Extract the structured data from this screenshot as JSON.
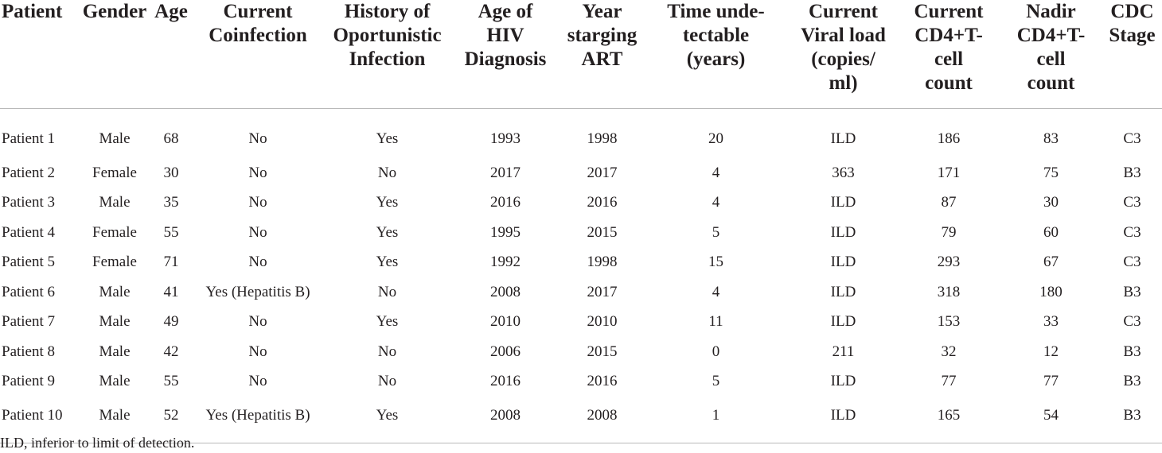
{
  "table": {
    "headers": [
      [
        "Patient"
      ],
      [
        "Gender"
      ],
      [
        "Age"
      ],
      [
        "Current",
        "Coinfection"
      ],
      [
        "History of",
        "Oportunistic",
        "Infection"
      ],
      [
        "Age of",
        "HIV",
        "Diagnosis"
      ],
      [
        "Year",
        "starging",
        "ART"
      ],
      [
        "Time unde-",
        "tectable",
        "(years)"
      ],
      [
        "Current",
        "Viral load",
        "(copies/",
        "ml)"
      ],
      [
        "Current",
        "CD4+T-",
        "cell",
        "count"
      ],
      [
        "Nadir",
        "CD4+T-",
        "cell",
        "count"
      ],
      [
        "CDC",
        "Stage"
      ]
    ],
    "rows": [
      [
        "Patient 1",
        "Male",
        "68",
        "No",
        "Yes",
        "1993",
        "1998",
        "20",
        "ILD",
        "186",
        "83",
        "C3"
      ],
      [
        "Patient 2",
        "Female",
        "30",
        "No",
        "No",
        "2017",
        "2017",
        "4",
        "363",
        "171",
        "75",
        "B3"
      ],
      [
        "Patient 3",
        "Male",
        "35",
        "No",
        "Yes",
        "2016",
        "2016",
        "4",
        "ILD",
        "87",
        "30",
        "C3"
      ],
      [
        "Patient 4",
        "Female",
        "55",
        "No",
        "Yes",
        "1995",
        "2015",
        "5",
        "ILD",
        "79",
        "60",
        "C3"
      ],
      [
        "Patient 5",
        "Female",
        "71",
        "No",
        "Yes",
        "1992",
        "1998",
        "15",
        "ILD",
        "293",
        "67",
        "C3"
      ],
      [
        "Patient 6",
        "Male",
        "41",
        "Yes (Hepatitis B)",
        "No",
        "2008",
        "2017",
        "4",
        "ILD",
        "318",
        "180",
        "B3"
      ],
      [
        "Patient 7",
        "Male",
        "49",
        "No",
        "Yes",
        "2010",
        "2010",
        "11",
        "ILD",
        "153",
        "33",
        "C3"
      ],
      [
        "Patient 8",
        "Male",
        "42",
        "No",
        "No",
        "2006",
        "2015",
        "0",
        "211",
        "32",
        "12",
        "B3"
      ],
      [
        "Patient 9",
        "Male",
        "55",
        "No",
        "No",
        "2016",
        "2016",
        "5",
        "ILD",
        "77",
        "77",
        "B3"
      ],
      [
        "Patient 10",
        "Male",
        "52",
        "Yes (Hepatitis B)",
        "Yes",
        "2008",
        "2008",
        "1",
        "ILD",
        "165",
        "54",
        "B3"
      ]
    ]
  },
  "footnote": "ILD, inferior to limit of detection."
}
